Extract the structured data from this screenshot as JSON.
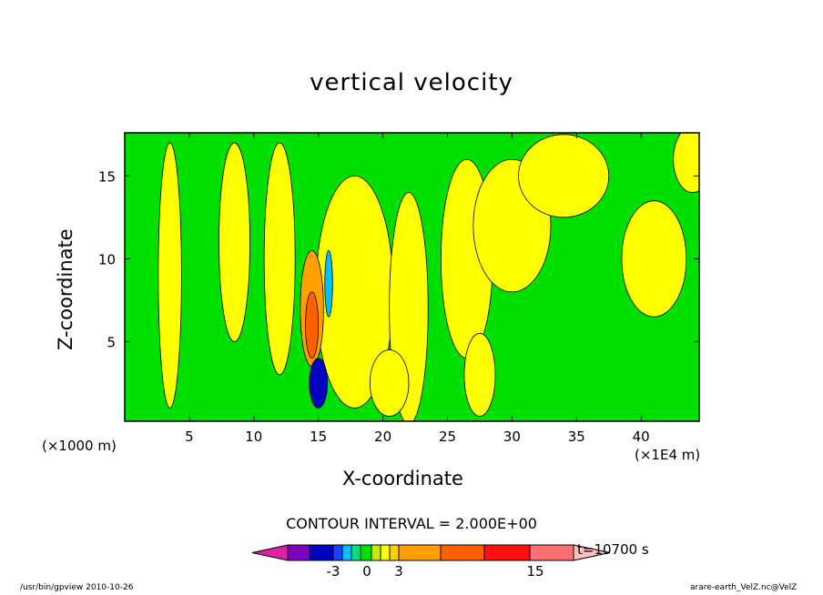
{
  "chart_data": {
    "type": "heatmap",
    "title": "vertical velocity",
    "xlabel": "X-coordinate",
    "ylabel": "Z-coordinate",
    "x_unit_left": "(×1000 m)",
    "x_unit_right": "(×1E4 m)",
    "xlim": [
      0,
      44.5
    ],
    "ylim": [
      0.2,
      17.6
    ],
    "x_ticks": [
      5,
      10,
      15,
      20,
      25,
      30,
      35,
      40
    ],
    "y_ticks": [
      5,
      10,
      15
    ],
    "contour_interval_text": "CONTOUR INTERVAL = 2.000E+00",
    "time_text": "t=10700 s",
    "colorbar": {
      "tick_labels": [
        "-3",
        "0",
        "3",
        "15"
      ],
      "colors": [
        "#e020a0",
        "#8000c0",
        "#0000c0",
        "#2040ff",
        "#00c0ff",
        "#00e080",
        "#00e000",
        "#c0f000",
        "#ffff00",
        "#ffd000",
        "#ffa000",
        "#ff6000",
        "#ff1010",
        "#ff7070",
        "#ffc0c0"
      ]
    },
    "blobs": [
      {
        "level": "#ffff00",
        "x": 3.5,
        "y": 9,
        "rx": 0.9,
        "ry": 8
      },
      {
        "level": "#ffff00",
        "x": 8.5,
        "y": 11,
        "rx": 1.2,
        "ry": 6
      },
      {
        "level": "#ffff00",
        "x": 12.0,
        "y": 10,
        "rx": 1.2,
        "ry": 7
      },
      {
        "level": "#ffff00",
        "x": 17.8,
        "y": 8,
        "rx": 3.0,
        "ry": 7
      },
      {
        "level": "#ffff00",
        "x": 22.0,
        "y": 7,
        "rx": 1.5,
        "ry": 7
      },
      {
        "level": "#ffff00",
        "x": 26.5,
        "y": 10,
        "rx": 2.0,
        "ry": 6
      },
      {
        "level": "#ffff00",
        "x": 30.0,
        "y": 12,
        "rx": 3.0,
        "ry": 4
      },
      {
        "level": "#ffff00",
        "x": 34.0,
        "y": 15,
        "rx": 3.5,
        "ry": 2.5
      },
      {
        "level": "#ffff00",
        "x": 41.0,
        "y": 10,
        "rx": 2.5,
        "ry": 3.5
      },
      {
        "level": "#ffff00",
        "x": 44.0,
        "y": 16,
        "rx": 1.5,
        "ry": 2
      },
      {
        "level": "#ffff00",
        "x": 20.5,
        "y": 2.5,
        "rx": 1.5,
        "ry": 2
      },
      {
        "level": "#ffff00",
        "x": 27.5,
        "y": 3,
        "rx": 1.2,
        "ry": 2.5
      },
      {
        "level": "#ffa000",
        "x": 14.5,
        "y": 7,
        "rx": 0.9,
        "ry": 3.5
      },
      {
        "level": "#ff6000",
        "x": 14.5,
        "y": 6,
        "rx": 0.5,
        "ry": 2
      },
      {
        "level": "#00c0ff",
        "x": 15.8,
        "y": 8.5,
        "rx": 0.3,
        "ry": 2
      },
      {
        "level": "#0000c0",
        "x": 15.0,
        "y": 2.5,
        "rx": 0.7,
        "ry": 1.5
      }
    ]
  },
  "footer_left": "/usr/bin/gpview   2010-10-26",
  "footer_right": "arare-earth_VelZ.nc@VelZ"
}
